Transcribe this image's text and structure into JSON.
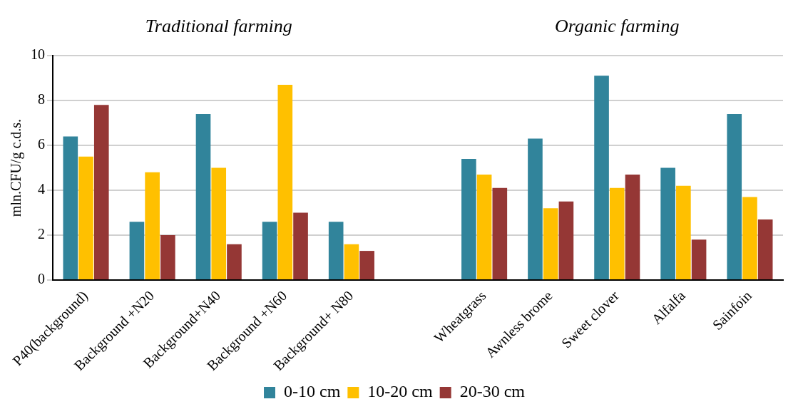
{
  "chart_data": {
    "type": "bar",
    "ylabel": "mln.CFU/g c.d.s.",
    "annotations": [
      "Traditional farming",
      "Organic farming"
    ],
    "categories": [
      "P40(background)",
      "Background +N20",
      "Background+N40",
      "Background +N60",
      "Background+ N80",
      null,
      "Wheatgrass",
      "Awnless brome",
      "Sweet clover",
      "Alfalfa",
      "Sainfoin"
    ],
    "series": [
      {
        "name": "0-10 cm",
        "color": "#31849b",
        "values": [
          6.4,
          2.6,
          7.4,
          2.6,
          2.6,
          null,
          5.4,
          6.3,
          9.1,
          5.0,
          7.4
        ]
      },
      {
        "name": "10-20 cm",
        "color": "#ffc000",
        "values": [
          5.5,
          4.8,
          5.0,
          8.7,
          1.6,
          null,
          4.7,
          3.2,
          4.1,
          4.2,
          3.7
        ]
      },
      {
        "name": "20-30 cm",
        "color": "#953735",
        "values": [
          7.8,
          2.0,
          1.6,
          3.0,
          1.3,
          null,
          4.1,
          3.5,
          4.7,
          1.8,
          2.7
        ]
      }
    ],
    "ylim": [
      0,
      10
    ],
    "yticks": [
      0,
      2,
      4,
      6,
      8,
      10
    ],
    "grid": "y",
    "legend": "bottom"
  }
}
